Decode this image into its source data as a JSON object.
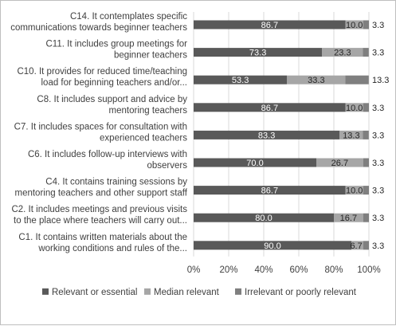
{
  "chart_data": {
    "type": "bar",
    "orientation": "horizontal",
    "stacked": true,
    "title": "",
    "xlabel": "",
    "ylabel": "",
    "xlim": [
      0,
      100
    ],
    "x_tick_labels": [
      "0%",
      "20%",
      "40%",
      "60%",
      "80%",
      "100%"
    ],
    "grid": true,
    "legend_position": "bottom",
    "categories": [
      [
        "C14. It contemplates specific",
        "communications towards beginner teachers"
      ],
      [
        "C11. It includes group meetings for",
        "beginner teachers"
      ],
      [
        "C10. It provides for reduced time/teaching",
        "load for beginning teachers and/or..."
      ],
      [
        "C8. It includes support and advice by",
        "mentoring teachers"
      ],
      [
        "C7. It includes spaces for consultation with",
        "experienced teachers"
      ],
      [
        "C6. It includes follow-up interviews with",
        "observers"
      ],
      [
        "C4. It contains training sessions by",
        "mentoring teachers and other support staff"
      ],
      [
        "C2. It includes meetings and previous visits",
        "to the place where teachers will carry out..."
      ],
      [
        "C1. It contains written materials about the",
        "working conditions and rules of the..."
      ]
    ],
    "series": [
      {
        "name": "Relevant or essential",
        "color": "#595959",
        "values": [
          86.7,
          73.3,
          53.3,
          86.7,
          83.3,
          70.0,
          86.7,
          80.0,
          90.0
        ],
        "labels": [
          "86.7",
          "73.3",
          "53.3",
          "86.7",
          "83.3",
          "70.0",
          "86.7",
          "80.0",
          "90.0"
        ]
      },
      {
        "name": "Median relevant",
        "color": "#a6a6a6",
        "values": [
          10.0,
          23.3,
          33.3,
          10.0,
          13.3,
          26.7,
          10.0,
          16.7,
          6.7
        ],
        "labels": [
          "10.0",
          "23.3",
          "33.3",
          "10.0",
          "13.3",
          "26.7",
          "10.0",
          "16.7",
          "6.7"
        ]
      },
      {
        "name": "Irrelevant or poorly relevant",
        "color": "#7f7f7f",
        "values": [
          3.3,
          3.3,
          13.3,
          3.3,
          3.3,
          3.3,
          3.3,
          3.3,
          3.3
        ],
        "labels": [
          "3.3",
          "3.3",
          "13.3",
          "3.3",
          "3.3",
          "3.3",
          "3.3",
          "3.3",
          "3.3"
        ]
      }
    ]
  }
}
